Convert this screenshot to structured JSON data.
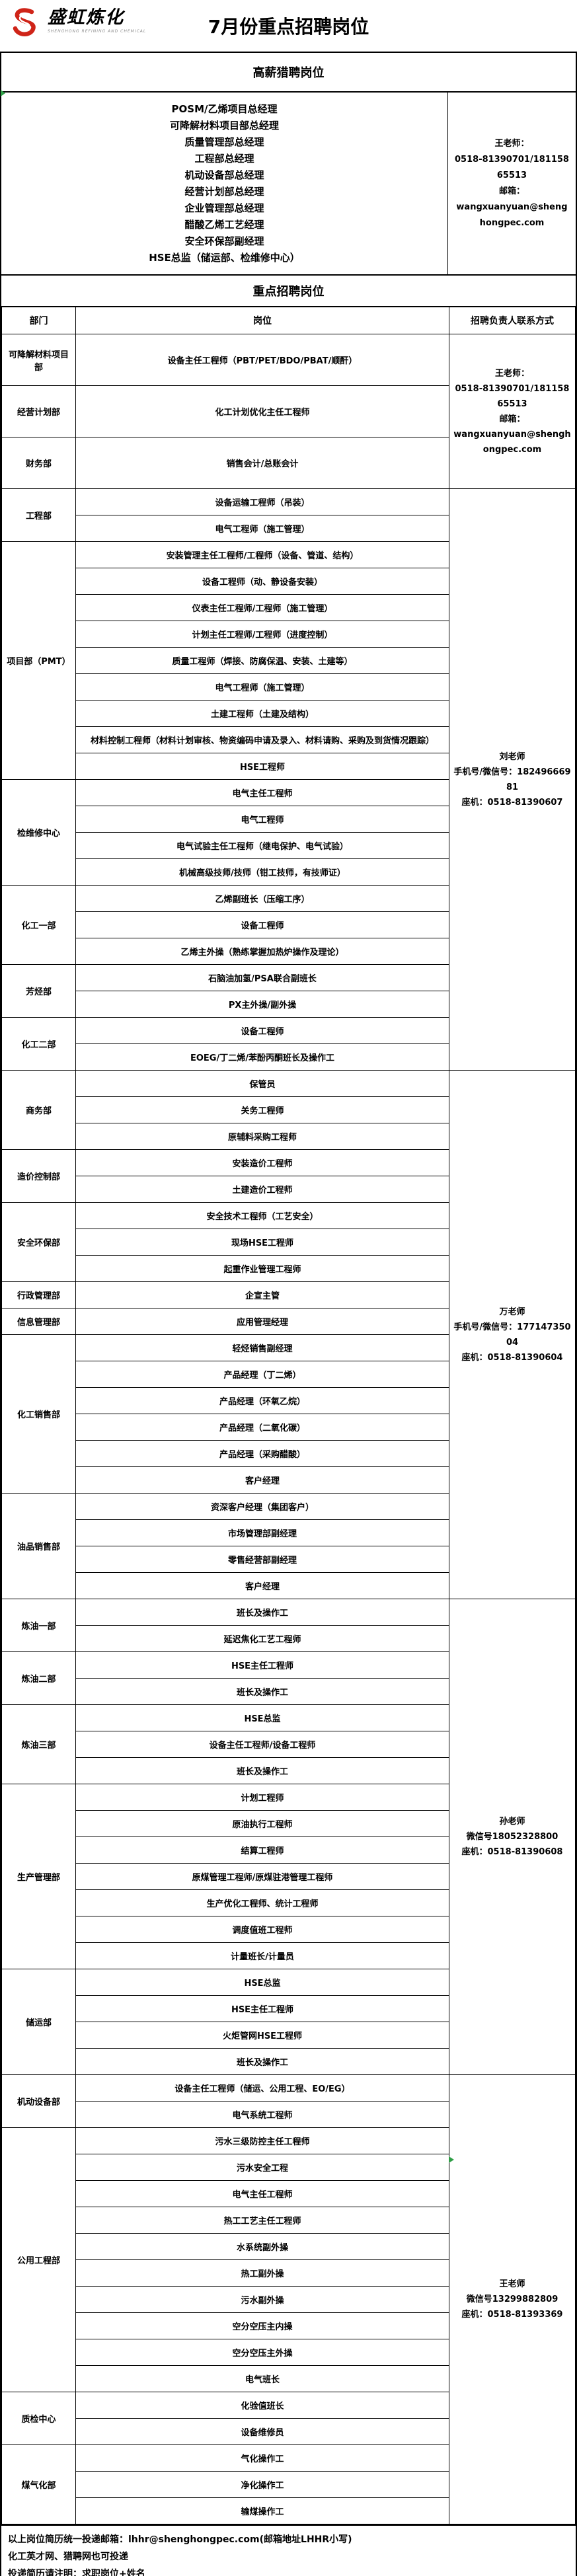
{
  "page": {
    "title": "7月份重点招聘岗位",
    "logo": {
      "name": "盛虹炼化",
      "caption": "SHENGHONG REFINING AND CHEMICAL"
    }
  },
  "colors": {
    "logo_red": "#cf2418",
    "marker_green": "#2e9e46",
    "border_black": "#000000"
  },
  "hunt": {
    "title": "高薪猎聘岗位",
    "positions": [
      "POSM/乙烯项目总经理",
      "可降解材料项目部总经理",
      "质量管理部总经理",
      "工程部总经理",
      "机动设备部总经理",
      "经营计划部总经理",
      "企业管理部总经理",
      "醋酸乙烯工艺经理",
      "安全环保部副经理",
      "HSE总监（储运部、检维修中心）"
    ],
    "contact": {
      "lines": [
        "王老师：",
        "0518-81390701/18115865513",
        "邮箱：",
        "wangxuanyuan@shenghongpec.com"
      ]
    }
  },
  "main": {
    "title": "重点招聘岗位",
    "columns": [
      "部门",
      "岗位",
      "招聘负责人联系方式"
    ],
    "contacts": [
      {
        "lines": [
          "王老师：",
          "0518-81390701/18115865513",
          "邮箱：",
          "wangxuanyuan@shenghongpec.com"
        ]
      },
      {
        "lines": [
          "刘老师",
          "手机号/微信号：18249666981",
          "座机：0518-81390607"
        ]
      },
      {
        "lines": [
          "万老师",
          "手机号/微信号：17714735004",
          "座机：0518-81390604"
        ]
      },
      {
        "lines": [
          "孙老师",
          "微信号18052328800",
          "座机：0518-81390608"
        ]
      },
      {
        "lines": [
          "王老师",
          "微信号13299882809",
          "座机：0518-81393369"
        ]
      }
    ],
    "groups": [
      {
        "dept": "可降解材料项目部",
        "contact": 0,
        "positions": [
          "设备主任工程师（PBT/PET/BDO/PBAT/顺酐）"
        ]
      },
      {
        "dept": "经营计划部",
        "contact": 0,
        "positions": [
          "化工计划优化主任工程师"
        ]
      },
      {
        "dept": "财务部",
        "contact": 0,
        "positions": [
          "销售会计/总账会计"
        ]
      },
      {
        "dept": "工程部",
        "contact": 1,
        "positions": [
          "设备运输工程师（吊装）",
          "电气工程师（施工管理）"
        ]
      },
      {
        "dept": "项目部（PMT）",
        "contact": 1,
        "positions": [
          "安装管理主任工程师/工程师（设备、管道、结构）",
          "设备工程师（动、静设备安装）",
          "仪表主任工程师/工程师（施工管理）",
          "计划主任工程师/工程师（进度控制）",
          "质量工程师（焊接、防腐保温、安装、土建等）",
          "电气工程师（施工管理）",
          "土建工程师（土建及结构）",
          "材料控制工程师（材料计划审核、物资编码申请及录入、材料请购、采购及到货情况跟踪）",
          "HSE工程师"
        ]
      },
      {
        "dept": "检维修中心",
        "contact": 1,
        "positions": [
          "电气主任工程师",
          "电气工程师",
          "电气试验主任工程师（继电保护、电气试验）",
          "机械高级技师/技师（钳工技师，有技师证）"
        ]
      },
      {
        "dept": "化工一部",
        "contact": 1,
        "positions": [
          "乙烯副班长（压缩工序）",
          "设备工程师",
          "乙烯主外操（熟练掌握加热炉操作及理论）"
        ]
      },
      {
        "dept": "芳烃部",
        "contact": 1,
        "positions": [
          "石脑油加氢/PSA联合副班长",
          "PX主外操/副外操"
        ]
      },
      {
        "dept": "化工二部",
        "contact": 1,
        "positions": [
          "设备工程师",
          "EOEG/丁二烯/苯酚丙酮班长及操作工"
        ]
      },
      {
        "dept": "商务部",
        "contact": 2,
        "positions": [
          "保管员",
          "关务工程师",
          "原辅料采购工程师"
        ]
      },
      {
        "dept": "造价控制部",
        "contact": 2,
        "positions": [
          "安装造价工程师",
          "土建造价工程师"
        ]
      },
      {
        "dept": "安全环保部",
        "contact": 2,
        "positions": [
          "安全技术工程师（工艺安全）",
          "现场HSE工程师",
          "起重作业管理工程师"
        ]
      },
      {
        "dept": "行政管理部",
        "contact": 2,
        "positions": [
          "企宣主管"
        ]
      },
      {
        "dept": "信息管理部",
        "contact": 2,
        "positions": [
          "应用管理经理"
        ]
      },
      {
        "dept": "化工销售部",
        "contact": 2,
        "positions": [
          "轻烃销售副经理",
          "产品经理（丁二烯）",
          "产品经理（环氧乙烷）",
          "产品经理（二氧化碳）",
          "产品经理（采购醋酸）",
          "客户经理"
        ]
      },
      {
        "dept": "油品销售部",
        "contact": 2,
        "positions": [
          "资深客户经理（集团客户）",
          "市场管理部副经理",
          "零售经营部副经理",
          "客户经理"
        ]
      },
      {
        "dept": "炼油一部",
        "contact": 3,
        "positions": [
          "班长及操作工",
          "延迟焦化工艺工程师"
        ]
      },
      {
        "dept": "炼油二部",
        "contact": 3,
        "positions": [
          "HSE主任工程师",
          "班长及操作工"
        ]
      },
      {
        "dept": "炼油三部",
        "contact": 3,
        "positions": [
          "HSE总监",
          "设备主任工程师/设备工程师",
          "班长及操作工"
        ]
      },
      {
        "dept": "生产管理部",
        "contact": 3,
        "positions": [
          "计划工程师",
          "原油执行工程师",
          "结算工程师",
          "原煤管理工程师/原煤驻港管理工程师",
          "生产优化工程师、统计工程师",
          "调度值班工程师",
          "计量班长/计量员"
        ]
      },
      {
        "dept": "储运部",
        "contact": 3,
        "positions": [
          "HSE总监",
          "HSE主任工程师",
          "火炬管网HSE工程师",
          "班长及操作工"
        ]
      },
      {
        "dept": "机动设备部",
        "contact": 4,
        "positions": [
          "设备主任工程师（储运、公用工程、EO/EG）",
          "电气系统工程师"
        ]
      },
      {
        "dept": "公用工程部",
        "contact": 4,
        "positions": [
          "污水三级防控主任工程师",
          "污水安全工程",
          "电气主任工程师",
          "热工工艺主任工程师",
          "水系统副外操",
          "热工副外操",
          "污水副外操",
          "空分空压主内操",
          "空分空压主外操",
          "电气班长"
        ]
      },
      {
        "dept": "质检中心",
        "contact": 4,
        "positions": [
          "化验值班长",
          "设备维修员"
        ]
      },
      {
        "dept": "煤气化部",
        "contact": 4,
        "positions": [
          "气化操作工",
          "净化操作工",
          "输煤操作工"
        ]
      }
    ]
  },
  "footer": {
    "lines": [
      "以上岗位简历统一投递邮箱：lhhr@shenghongpec.com(邮箱地址LHHR小写)",
      "化工英才网、猎聘网也可投递",
      "投递简历请注明：求职岗位+姓名"
    ]
  }
}
